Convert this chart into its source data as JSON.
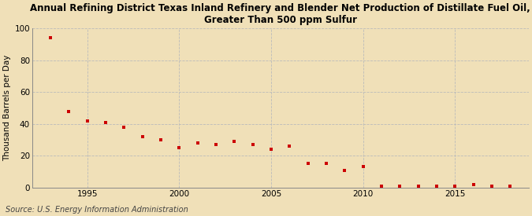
{
  "title": "Annual Refining District Texas Inland Refinery and Blender Net Production of Distillate Fuel Oil,\nGreater Than 500 ppm Sulfur",
  "ylabel": "Thousand Barrels per Day",
  "source": "Source: U.S. Energy Information Administration",
  "background_color": "#f0e0b8",
  "plot_bg_color": "#f0e0b8",
  "marker_color": "#cc0000",
  "years": [
    1993,
    1994,
    1995,
    1996,
    1997,
    1998,
    1999,
    2000,
    2001,
    2002,
    2003,
    2004,
    2005,
    2006,
    2007,
    2008,
    2009,
    2010,
    2011,
    2012,
    2013,
    2014,
    2015,
    2016,
    2017,
    2018
  ],
  "values": [
    94,
    48,
    42,
    41,
    38,
    32,
    30,
    25,
    28,
    27,
    29,
    27,
    24,
    26,
    15,
    15,
    11,
    13,
    1,
    1,
    1,
    1,
    1,
    2,
    1,
    1
  ],
  "ylim": [
    0,
    100
  ],
  "yticks": [
    0,
    20,
    40,
    60,
    80,
    100
  ],
  "xticks": [
    1995,
    2000,
    2005,
    2010,
    2015
  ],
  "xlim": [
    1992.0,
    2019.0
  ],
  "grid_color": "#bbbbbb",
  "spine_color": "#888888",
  "title_fontsize": 8.5,
  "label_fontsize": 7.5,
  "tick_fontsize": 7.5,
  "source_fontsize": 7
}
